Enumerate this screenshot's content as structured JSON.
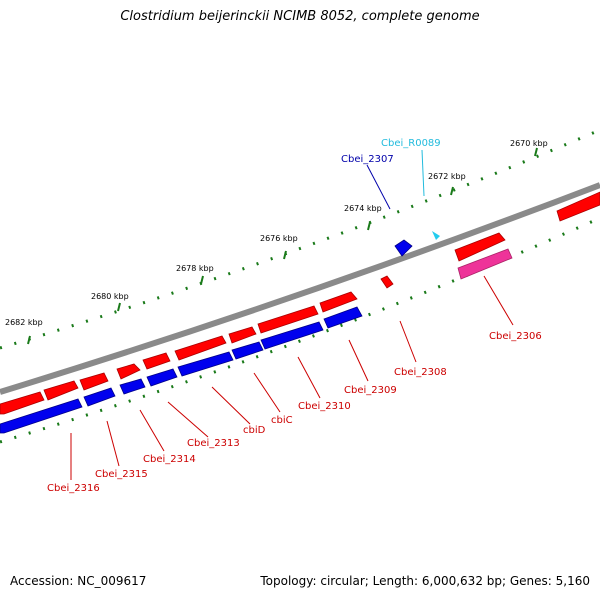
{
  "title": "Clostridium beijerinckii NCIMB 8052, complete genome",
  "accession_text": "Accession: NC_009617",
  "summary_text": "Topology: circular; Length: 6,000,632 bp; Genes: 5,160",
  "colors": {
    "backbone": "#8a8a8a",
    "forward_cds": "#ff0000",
    "reverse_cds": "#0000ee",
    "forward_other": "#ee3399",
    "trna": "#22ccee",
    "tick": "#1a7a1a",
    "label_forward": "#cc0000",
    "label_reverse": "#0000aa",
    "label_trna": "#22bbdd"
  },
  "scale_labels": [
    "2670 kbp",
    "2672 kbp",
    "2674 kbp",
    "2676 kbp",
    "2678 kbp",
    "2680 kbp",
    "2682 kbp"
  ],
  "gene_labels": [
    {
      "text": "Cbei_R0089",
      "kind": "trna"
    },
    {
      "text": "Cbei_2307",
      "kind": "reverse"
    },
    {
      "text": "Cbei_2306",
      "kind": "forward"
    },
    {
      "text": "Cbei_2308",
      "kind": "forward"
    },
    {
      "text": "Cbei_2309",
      "kind": "forward"
    },
    {
      "text": "Cbei_2310",
      "kind": "forward"
    },
    {
      "text": "cbiC",
      "kind": "forward"
    },
    {
      "text": "cbiD",
      "kind": "forward"
    },
    {
      "text": "Cbei_2313",
      "kind": "forward"
    },
    {
      "text": "Cbei_2314",
      "kind": "forward"
    },
    {
      "text": "Cbei_2315",
      "kind": "forward"
    },
    {
      "text": "Cbei_2316",
      "kind": "forward"
    }
  ]
}
